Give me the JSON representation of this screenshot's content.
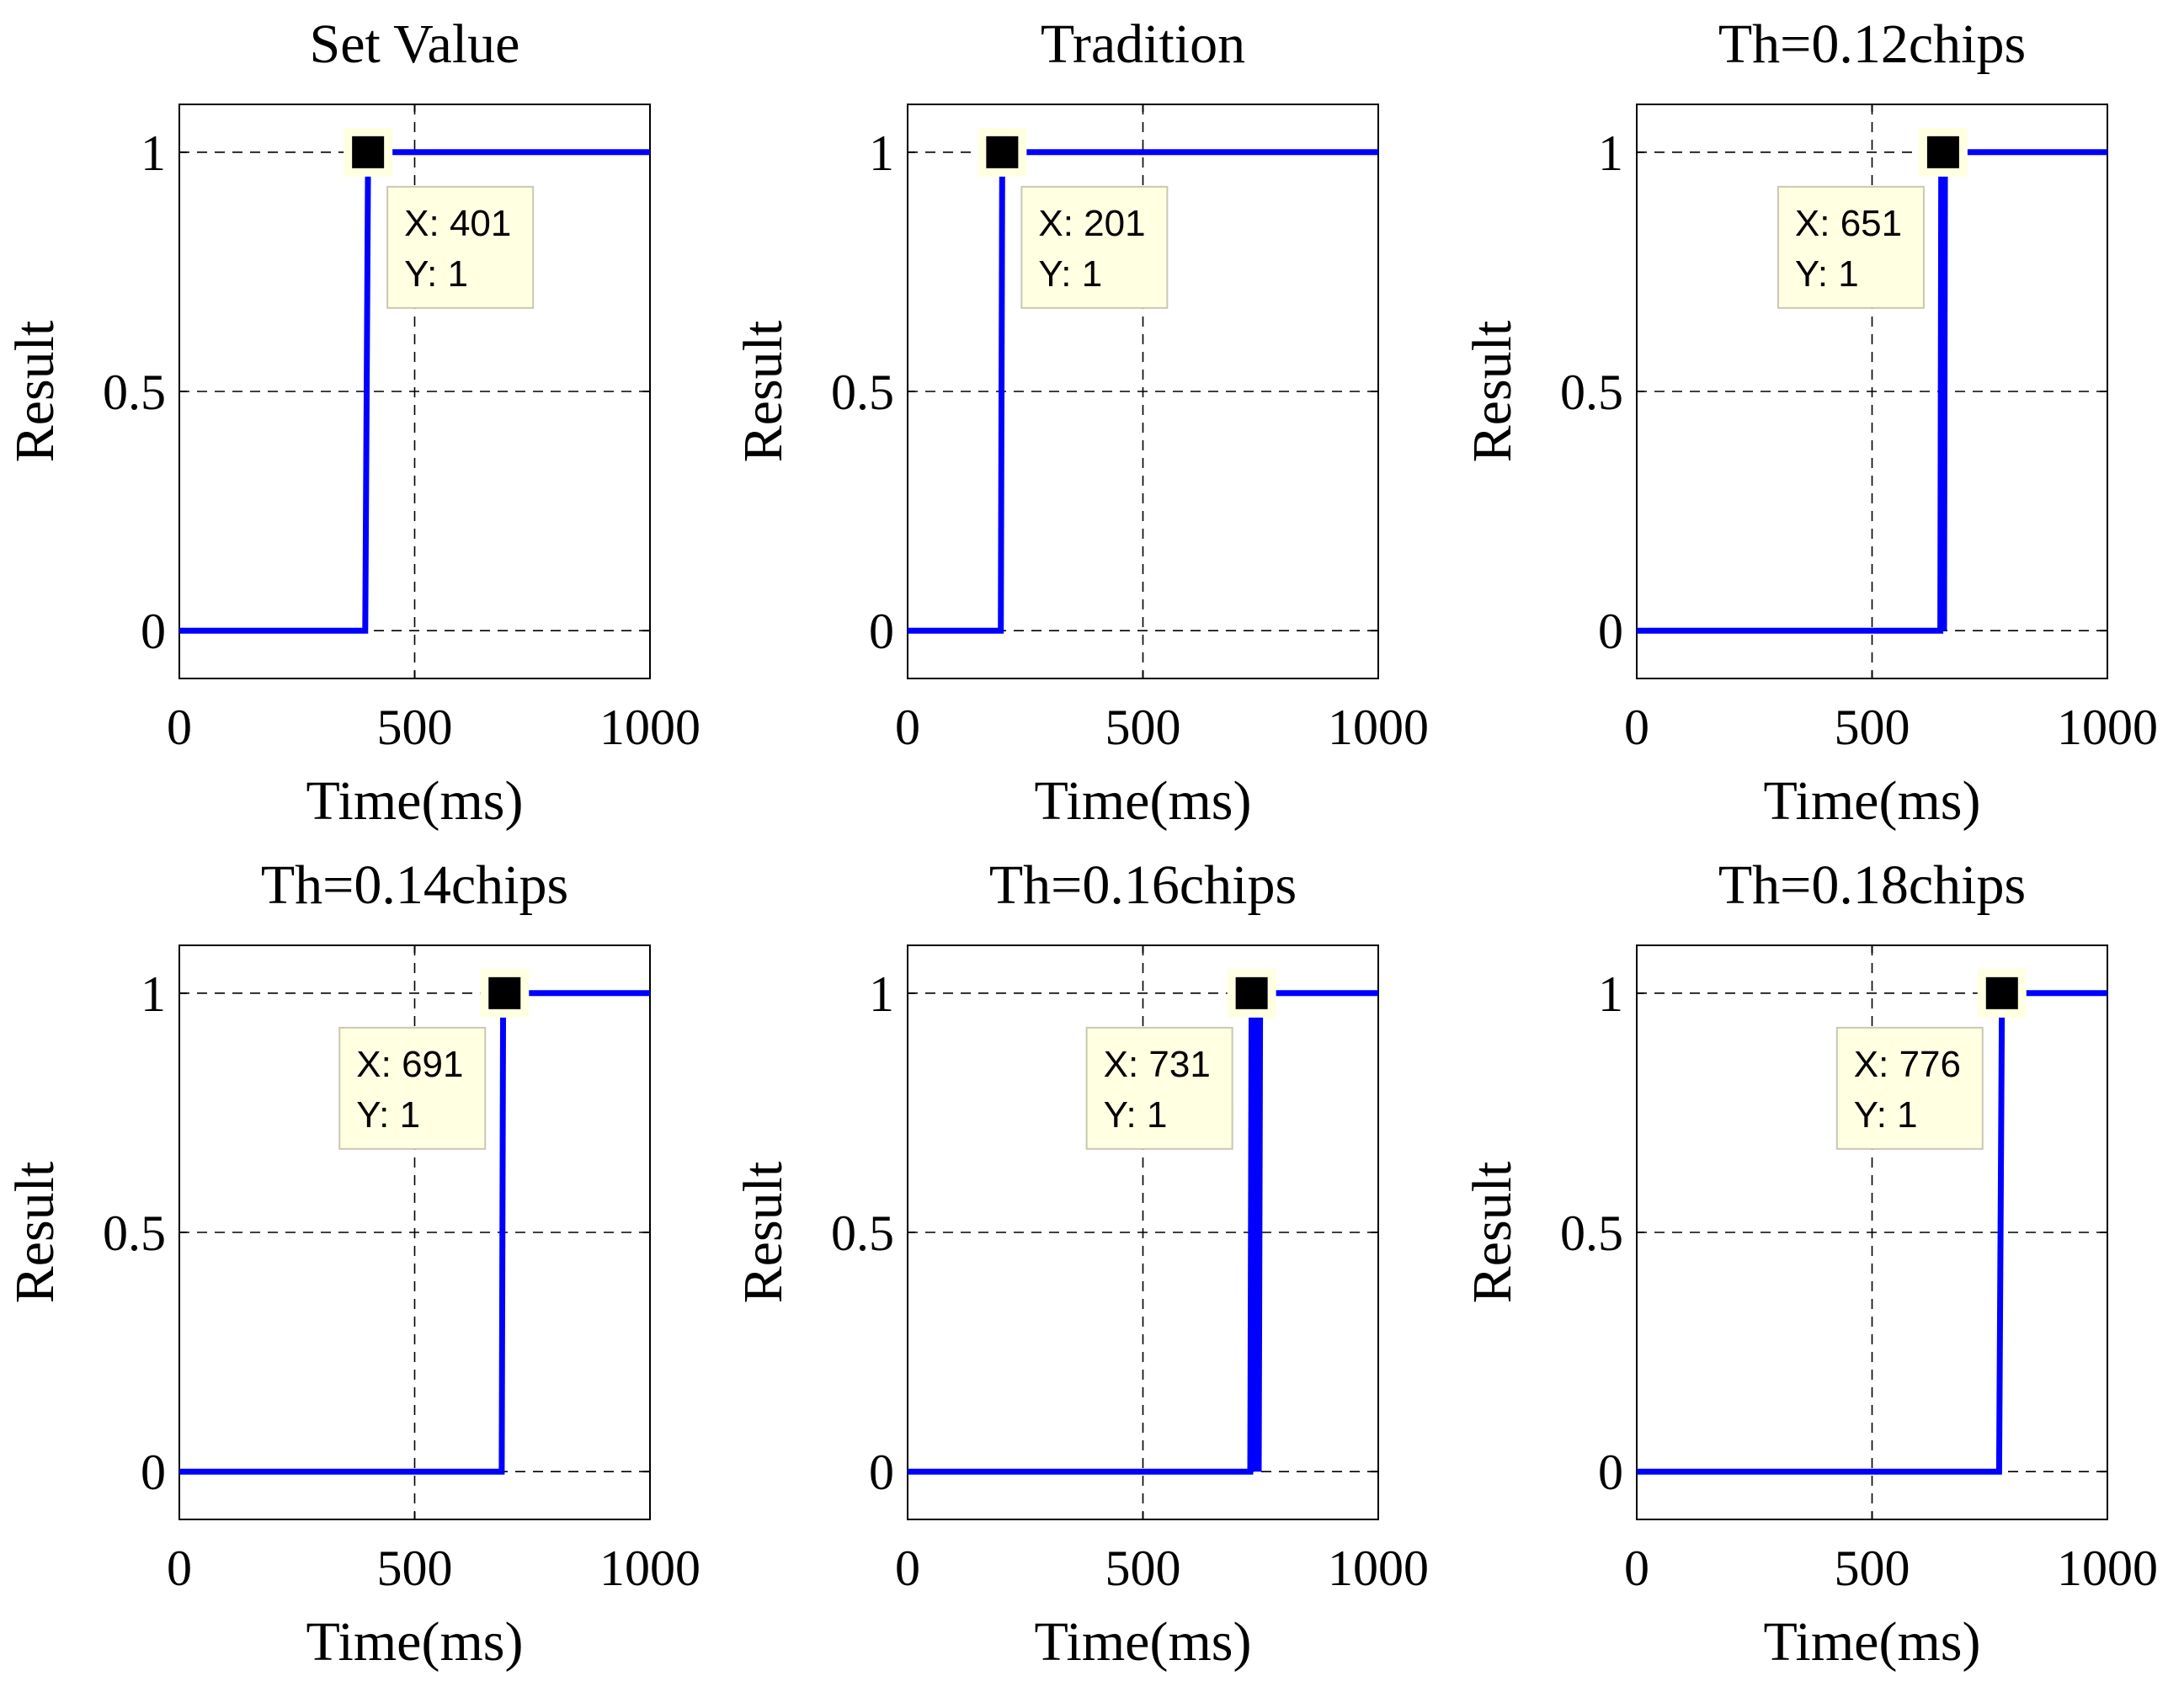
{
  "figure": {
    "line_color": "#0000ff",
    "datatip_bg": "#ffffe1",
    "datatip_border": "#c8c8b4",
    "grid_color": "#000000"
  },
  "chart_data": [
    {
      "type": "line",
      "title": "Set Value",
      "xlabel": "Time(ms)",
      "ylabel": "Result",
      "xlim": [
        0,
        1000
      ],
      "ylim": [
        -0.1,
        1.1
      ],
      "xticks": [
        "0",
        "500",
        "1000"
      ],
      "yticks": [
        "0",
        "0.5",
        "1"
      ],
      "grid": true,
      "series": [
        {
          "name": "Result",
          "x": [
            0,
            395,
            401,
            1000
          ],
          "y": [
            0,
            0,
            1,
            1
          ]
        }
      ],
      "datatip": {
        "x": 401,
        "y": 1,
        "x_label": "X: 401",
        "y_label": "Y: 1",
        "placement": "right"
      }
    },
    {
      "type": "line",
      "title": "Tradition",
      "xlabel": "Time(ms)",
      "ylabel": "Result",
      "xlim": [
        0,
        1000
      ],
      "ylim": [
        -0.1,
        1.1
      ],
      "xticks": [
        "0",
        "500",
        "1000"
      ],
      "yticks": [
        "0",
        "0.5",
        "1"
      ],
      "grid": true,
      "series": [
        {
          "name": "Result",
          "x": [
            0,
            198,
            201,
            1000
          ],
          "y": [
            0,
            0,
            1,
            1
          ]
        }
      ],
      "datatip": {
        "x": 201,
        "y": 1,
        "x_label": "X: 201",
        "y_label": "Y: 1",
        "placement": "right"
      }
    },
    {
      "type": "line",
      "title": "Th=0.12chips",
      "xlabel": "Time(ms)",
      "ylabel": "Result",
      "xlim": [
        0,
        1000
      ],
      "ylim": [
        -0.1,
        1.1
      ],
      "xticks": [
        "0",
        "500",
        "1000"
      ],
      "yticks": [
        "0",
        "0.5",
        "1"
      ],
      "grid": true,
      "series": [
        {
          "name": "Result",
          "x": [
            0,
            645,
            647,
            649,
            651,
            653,
            655,
            1000
          ],
          "y": [
            0,
            0,
            1,
            0,
            1,
            0,
            1,
            1
          ]
        }
      ],
      "datatip": {
        "x": 651,
        "y": 1,
        "x_label": "X: 651",
        "y_label": "Y: 1",
        "placement": "left"
      }
    },
    {
      "type": "line",
      "title": "Th=0.14chips",
      "xlabel": "Time(ms)",
      "ylabel": "Result",
      "xlim": [
        0,
        1000
      ],
      "ylim": [
        -0.1,
        1.1
      ],
      "xticks": [
        "0",
        "500",
        "1000"
      ],
      "yticks": [
        "0",
        "0.5",
        "1"
      ],
      "grid": true,
      "series": [
        {
          "name": "Result",
          "x": [
            0,
            685,
            688,
            691,
            1000
          ],
          "y": [
            0,
            0,
            1,
            1,
            1
          ]
        }
      ],
      "datatip": {
        "x": 691,
        "y": 1,
        "x_label": "X: 691",
        "y_label": "Y: 1",
        "placement": "left"
      }
    },
    {
      "type": "line",
      "title": "Th=0.16chips",
      "xlabel": "Time(ms)",
      "ylabel": "Result",
      "xlim": [
        0,
        1000
      ],
      "ylim": [
        -0.1,
        1.1
      ],
      "xticks": [
        "0",
        "500",
        "1000"
      ],
      "yticks": [
        "0",
        "0.5",
        "1"
      ],
      "grid": true,
      "series": [
        {
          "name": "Result",
          "x": [
            0,
            728,
            731,
            734,
            737,
            740,
            743,
            746,
            749,
            1000
          ],
          "y": [
            0,
            0,
            1,
            0,
            1,
            0,
            1,
            0,
            1,
            1
          ]
        }
      ],
      "datatip": {
        "x": 731,
        "y": 1,
        "x_label": "X: 731",
        "y_label": "Y: 1",
        "placement": "left"
      }
    },
    {
      "type": "line",
      "title": "Th=0.18chips",
      "xlabel": "Time(ms)",
      "ylabel": "Result",
      "xlim": [
        0,
        1000
      ],
      "ylim": [
        -0.1,
        1.1
      ],
      "xticks": [
        "0",
        "500",
        "1000"
      ],
      "yticks": [
        "0",
        "0.5",
        "1"
      ],
      "grid": true,
      "series": [
        {
          "name": "Result",
          "x": [
            0,
            770,
            776,
            1000
          ],
          "y": [
            0,
            0,
            1,
            1
          ]
        }
      ],
      "datatip": {
        "x": 776,
        "y": 1,
        "x_label": "X: 776",
        "y_label": "Y: 1",
        "placement": "left"
      }
    }
  ]
}
